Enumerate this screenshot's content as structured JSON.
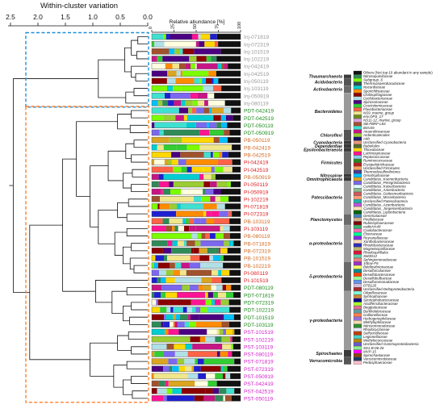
{
  "chart_data": {
    "type": "bar",
    "orientation": "horizontal",
    "stacked": true,
    "top_axis": {
      "label": "Within-cluster variation",
      "ticks": [
        "2.5",
        "2.0",
        "1.5",
        "1.0",
        "0.5",
        "0.0"
      ],
      "range": [
        2.5,
        0.0
      ]
    },
    "bar_axis": {
      "label": "Relative abundance [%]",
      "ticks": [
        "0",
        "25",
        "50",
        "75",
        "100"
      ],
      "range": [
        0,
        100
      ]
    },
    "samples": [
      {
        "name": "Inj-071819",
        "color": "#9a9a9a"
      },
      {
        "name": "Inj-072319",
        "color": "#9a9a9a"
      },
      {
        "name": "Inj-101519",
        "color": "#9a9a9a"
      },
      {
        "name": "Inj-102219",
        "color": "#9a9a9a"
      },
      {
        "name": "Inj-042419",
        "color": "#9a9a9a"
      },
      {
        "name": "Inj-042519",
        "color": "#9a9a9a"
      },
      {
        "name": "Inj-050119",
        "color": "#9a9a9a"
      },
      {
        "name": "Inj-103119",
        "color": "#9a9a9a"
      },
      {
        "name": "Inj-050919",
        "color": "#9a9a9a"
      },
      {
        "name": "Inj-080119",
        "color": "#9a9a9a"
      },
      {
        "name": "PDT-042419",
        "color": "#1d8a1d"
      },
      {
        "name": "PDT-042519",
        "color": "#1d8a1d"
      },
      {
        "name": "PDT-050119",
        "color": "#1d8a1d"
      },
      {
        "name": "PDT-050919",
        "color": "#1d8a1d"
      },
      {
        "name": "PB-050119",
        "color": "#d2691e"
      },
      {
        "name": "PB-042419",
        "color": "#d2691e"
      },
      {
        "name": "PB-042519",
        "color": "#d2691e"
      },
      {
        "name": "PI-042419",
        "color": "#e02020"
      },
      {
        "name": "PI-042519",
        "color": "#e02020"
      },
      {
        "name": "PB-050919",
        "color": "#d2691e"
      },
      {
        "name": "PI-050119",
        "color": "#e02020"
      },
      {
        "name": "PI-050919",
        "color": "#e02020"
      },
      {
        "name": "PI-102219",
        "color": "#e02020"
      },
      {
        "name": "PI-071819",
        "color": "#e02020"
      },
      {
        "name": "PI-072319",
        "color": "#e02020"
      },
      {
        "name": "PB-103119",
        "color": "#d2691e"
      },
      {
        "name": "PI-103119",
        "color": "#e02020"
      },
      {
        "name": "PB-080119",
        "color": "#d2691e"
      },
      {
        "name": "PB-071819",
        "color": "#d2691e"
      },
      {
        "name": "PB-072319",
        "color": "#d2691e"
      },
      {
        "name": "PB-101519",
        "color": "#d2691e"
      },
      {
        "name": "PB-102219",
        "color": "#d2691e"
      },
      {
        "name": "PI-080119",
        "color": "#e02020"
      },
      {
        "name": "PI-101519",
        "color": "#e02020"
      },
      {
        "name": "PDT-080119",
        "color": "#1d8a1d"
      },
      {
        "name": "PDT-071819",
        "color": "#1d8a1d"
      },
      {
        "name": "PDT-072319",
        "color": "#1d8a1d"
      },
      {
        "name": "PDT-102219",
        "color": "#1d8a1d"
      },
      {
        "name": "PDT-101519",
        "color": "#1d8a1d"
      },
      {
        "name": "PDT-103119",
        "color": "#1d8a1d"
      },
      {
        "name": "PST-101519",
        "color": "#d21fc8"
      },
      {
        "name": "PST-102219",
        "color": "#d21fc8"
      },
      {
        "name": "PST-103119",
        "color": "#d21fc8"
      },
      {
        "name": "PST-080119",
        "color": "#d21fc8"
      },
      {
        "name": "PST-071819",
        "color": "#d21fc8"
      },
      {
        "name": "PST-072319",
        "color": "#d21fc8"
      },
      {
        "name": "PST-050919",
        "color": "#d21fc8"
      },
      {
        "name": "PST-042419",
        "color": "#d21fc8"
      },
      {
        "name": "PST-042519",
        "color": "#d21fc8"
      },
      {
        "name": "PST-050119",
        "color": "#d21fc8"
      }
    ],
    "clusters": [
      {
        "color": "#1e90d8",
        "samples": [
          "Inj-071819",
          "Inj-072319",
          "Inj-101519",
          "Inj-102219",
          "Inj-042419",
          "Inj-042519",
          "Inj-050119",
          "Inj-103119",
          "Inj-050919",
          "Inj-080119"
        ]
      },
      {
        "color": "#ff7f27",
        "samples": [
          "PDT-042419",
          "PDT-042519",
          "PDT-050119",
          "PDT-050919",
          "PB-050119",
          "PB-042419",
          "PB-042519",
          "PI-042419",
          "PI-042519",
          "PB-050919",
          "PI-050119",
          "PI-050919",
          "PI-102219",
          "PI-071819",
          "PI-072319",
          "PB-103119",
          "PI-103119",
          "PB-080119",
          "PB-071819",
          "PB-072319",
          "PB-101519",
          "PB-102219",
          "PI-080119",
          "PI-101519",
          "PDT-080119",
          "PDT-071819",
          "PDT-072319",
          "PDT-102219",
          "PDT-101519",
          "PDT-103119",
          "PST-101519",
          "PST-102219",
          "PST-103119",
          "PST-080119",
          "PST-071819",
          "PST-072319",
          "PST-050919",
          "PST-042419",
          "PST-042519",
          "PST-050119"
        ]
      }
    ],
    "legend": {
      "header": "Others (Not top-10 abundant in any sample)",
      "header_color": "#111111",
      "groups": [
        {
          "name": "Thaumarchaeota",
          "bar_color": "#3a3a3a",
          "taxa": [
            [
              "Nitrosopumilaceae",
              "#2e8b57"
            ]
          ]
        },
        {
          "name": "Acidobacteria",
          "bar_color": "#555555",
          "taxa": [
            [
              "Subgroup_6",
              "#7cfc00"
            ],
            [
              "Thermoanaerobaculaceae",
              "#2f4f4f"
            ]
          ]
        },
        {
          "name": "Actinobacteria",
          "bar_color": "#6a6a6a",
          "taxa": [
            [
              "Nocardiaceae",
              "#00ced1"
            ],
            [
              "Sporichthyaceae",
              "#ff8c00"
            ]
          ]
        },
        {
          "name": "Bacteroidetes",
          "bar_color": "#9a9a9a",
          "taxa": [
            [
              "Chitinophagaceae",
              "#8b0000"
            ],
            [
              "Cyclobacteriaceae",
              "#b0e0e6"
            ],
            [
              "Spirosomaceae",
              "#4b0082"
            ],
            [
              "Crocinitomicaceae",
              "#32cd32"
            ],
            [
              "Flavobacteriaceae",
              "#ff6347"
            ],
            [
              "NS9_marine_group",
              "#f0e68c"
            ],
            [
              "env.OPS_17",
              "#6b8e23"
            ],
            [
              "NS11-12_marine_group",
              "#dda0dd"
            ],
            [
              "SB-FBRF-L83",
              "#a0522d"
            ],
            [
              "BSV26",
              "#40e0d0"
            ]
          ]
        },
        {
          "name": "Chloroflexi",
          "bar_color": "#555555",
          "taxa": [
            [
              "Anaerolineaceae",
              "#c71585"
            ],
            [
              "Ardenticatenales",
              "#9acd32"
            ],
            [
              "A4b",
              "#191970"
            ]
          ]
        },
        {
          "name": "Cyanobacteria",
          "bar_color": "#3a3a3a",
          "taxa": [
            [
              "Unclassified Cyanobacteria",
              "#e9967a"
            ]
          ]
        },
        {
          "name": "Dependentiae",
          "bar_color": "#3a3a3a",
          "taxa": [
            [
              "Babeliales",
              "#556b2f"
            ]
          ]
        },
        {
          "name": "Epsilonbacteraeota",
          "bar_color": "#3a3a3a",
          "taxa": [
            [
              "Thiovulaceae",
              "#ffd700"
            ]
          ]
        },
        {
          "name": "Firmicutes",
          "bar_color": "#6a6a6a",
          "taxa": [
            [
              "Lachnospiraceae",
              "#ff1493"
            ],
            [
              "Peptococcaceae",
              "#87ceeb"
            ],
            [
              "Ruminococcaceae",
              "#228b22"
            ],
            [
              "Erysipelotrichaceae",
              "#b22222"
            ],
            [
              "Unclassified Firmicutes",
              "#f4a460"
            ],
            [
              "Thermodesulfovibrionia",
              "#483d8b"
            ]
          ]
        },
        {
          "name": "Nitrospirae",
          "bar_color": "#3a3a3a",
          "taxa": [
            [
              "Omnitrophaceae",
              "#00bfff"
            ]
          ]
        },
        {
          "name": "Omnitrophicaeota",
          "bar_color": "#3a3a3a",
          "taxa": [
            [
              "Candidatus_Kuenenbacteria",
              "#daa520"
            ]
          ]
        },
        {
          "name": "Patescibacteria",
          "bar_color": "#9a9a9a",
          "taxa": [
            [
              "Candidatus_Peregrinibacteria",
              "#7b68ee"
            ],
            [
              "Candidatus_Kaiserbacteria",
              "#e0ffff"
            ],
            [
              "Candidatus_Amesbacteria",
              "#8fbc8f"
            ],
            [
              "Candidatus_Gottesmanbacteria",
              "#cd5c5c"
            ],
            [
              "Candidatus_Moranbacteria",
              "#ffa07a"
            ],
            [
              "Unclassified Patescibacteria",
              "#20b2aa"
            ],
            [
              "Candidatus_Azambacteria",
              "#ba55d3"
            ],
            [
              "Candidatus_Jorgensenbacteria",
              "#ffe4b5"
            ],
            [
              "Candidatus_Liptonbacteria",
              "#006400"
            ]
          ]
        },
        {
          "name": "Planctomycetes",
          "bar_color": "#6a6a6a",
          "taxa": [
            [
              "Gemmataceae",
              "#4682b4"
            ],
            [
              "Pirellulaceae",
              "#d2b48c"
            ],
            [
              "Rubinisphaeraceae",
              "#800000"
            ]
          ]
        },
        {
          "name": "α-proteobacteria",
          "bar_color": "#9a9a9a",
          "taxa": [
            [
              "vadinHA49",
              "#3cb371"
            ],
            [
              "Caulobacteraceae",
              "#ff69b4"
            ],
            [
              "Elsteraceae",
              "#00fa9a"
            ],
            [
              "Reyranellaceae",
              "#8a2be2"
            ],
            [
              "Xanthobacteraceae",
              "#ffdab9"
            ],
            [
              "Rhodobacteraceae",
              "#2e2eb8"
            ],
            [
              "Magnetospirillaceae",
              "#bdb76b"
            ],
            [
              "Rhodospirillales",
              "#dc143c"
            ],
            [
              "SM2D12",
              "#66cdaa"
            ],
            [
              "Sphingomonadaceae",
              "#f08080"
            ]
          ]
        },
        {
          "name": "δ-proteobacteria",
          "bar_color": "#6a6a6a",
          "taxa": [
            [
              "10bav-F6",
              "#9932cc"
            ],
            [
              "Bdellovibrionaceae",
              "#ffff66"
            ],
            [
              "Desulfarculaceae",
              "#008b8b"
            ],
            [
              "Desulfobacteraceae",
              "#ff4500"
            ],
            [
              "Desulfobulbaceae",
              "#98fb98"
            ],
            [
              "Desulfuromonadaceae",
              "#6495ed"
            ],
            [
              "DTB120",
              "#d8bfd8"
            ],
            [
              "Unclassified Deltaproteobacteria",
              "#a52a2a"
            ]
          ]
        },
        {
          "name": "γ-proteobacteria",
          "bar_color": "#9a9a9a",
          "taxa": [
            [
              "Oligoflexaceae",
              "#7fffd4"
            ],
            [
              "Syntrophaceae",
              "#cd853f"
            ],
            [
              "Syntrophobacteraceae",
              "#00008b"
            ],
            [
              "Acidiferrobacteraceae",
              "#adff2f"
            ],
            [
              "Beggiatoaceae",
              "#db7093"
            ],
            [
              "Burkholderiaceae",
              "#5f9ea0"
            ],
            [
              "Gallionellaceae",
              "#ff7f50"
            ],
            [
              "Hydrogenophilaceae",
              "#9370db"
            ],
            [
              "Methylophilaceae",
              "#f5deb3"
            ],
            [
              "Nitrosomonadaceae",
              "#2f8f2f"
            ],
            [
              "Rhodocyclaceae",
              "#e6e6fa"
            ],
            [
              "Sulfuricellaceae",
              "#c04000"
            ],
            [
              "Legionellaceae",
              "#48d1cc"
            ],
            [
              "Methylococcaceae",
              "#b8860b"
            ],
            [
              "Unclassified Gammaproteobacteria",
              "#6a5acd"
            ],
            [
              "SS1-B-06-26",
              "#90ee90"
            ]
          ]
        },
        {
          "name": "Spirochaetes",
          "bar_color": "#3a3a3a",
          "taxa": [
            [
              "MVP-15",
              "#ff00ff"
            ],
            [
              "Spirochaetaceae",
              "#8b4513"
            ]
          ]
        },
        {
          "name": "Verrucomicrobia",
          "bar_color": "#555555",
          "taxa": [
            [
              "Verrucomicrobiaceae",
              "#1e3a5f"
            ],
            [
              "Pedosphaeraceae",
              "#ffc0cb"
            ]
          ]
        }
      ]
    },
    "stack_palette": [
      "#111111",
      "#ff8c00",
      "#7cfc00",
      "#8b0000",
      "#b0e0e6",
      "#4b0082",
      "#32cd32",
      "#ff6347",
      "#f0e68c",
      "#00bfff",
      "#c71585",
      "#1f1fd0",
      "#ffd700",
      "#a0522d",
      "#40e0d0",
      "#ff1493",
      "#9acd32",
      "#2e8b57",
      "#daa520",
      "#00ced1",
      "#7b68ee",
      "#ffffe0"
    ]
  }
}
